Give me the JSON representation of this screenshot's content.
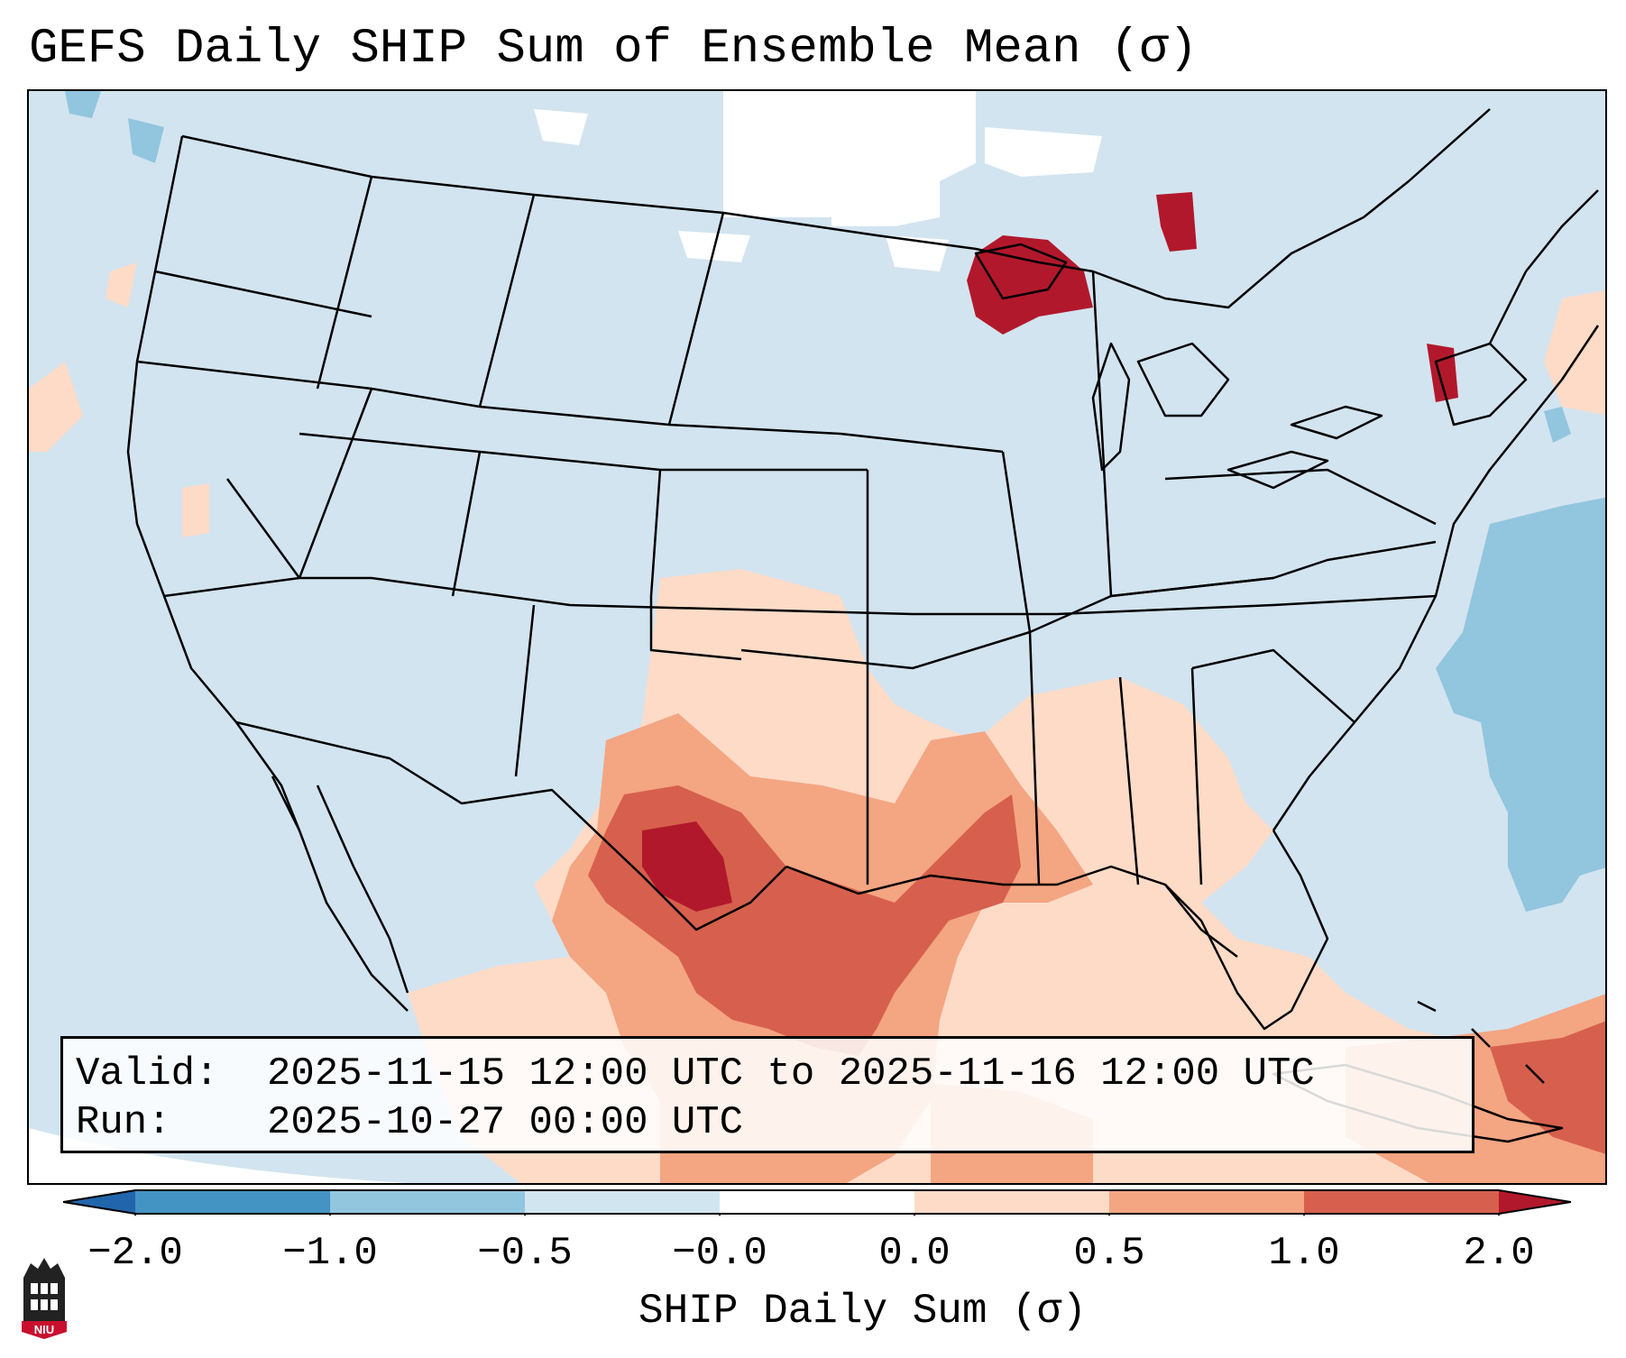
{
  "title": "GEFS Daily SHIP Sum of Ensemble Mean (σ)",
  "map": {
    "region": "Continental United States",
    "colors": {
      "ocean_background": "#d2e4f0",
      "no_data": "#ffffff",
      "state_lines": "#000000"
    }
  },
  "info": {
    "valid_label": "Valid:",
    "valid_value": "2025-11-15 12:00 UTC to 2025-11-16 12:00 UTC",
    "run_label": "Run:",
    "run_value": "2025-10-27 00:00 UTC"
  },
  "colorbar": {
    "label": "SHIP Daily Sum (σ)",
    "ticks": [
      "−2.0",
      "−1.0",
      "−0.5",
      "−0.0",
      "0.0",
      "0.5",
      "1.0",
      "2.0"
    ],
    "bins": [
      {
        "range": "< -2.0",
        "color": "#2166ac"
      },
      {
        "range": "-2.0 to -1.0",
        "color": "#4393c3"
      },
      {
        "range": "-1.0 to -0.5",
        "color": "#92c5de"
      },
      {
        "range": "-0.5 to -0.0",
        "color": "#d1e5f0"
      },
      {
        "range": "-0.0 to 0.0",
        "color": "#ffffff"
      },
      {
        "range": "0.0 to 0.5",
        "color": "#fddbc7"
      },
      {
        "range": "0.5 to 1.0",
        "color": "#f4a582"
      },
      {
        "range": "1.0 to 2.0",
        "color": "#d6604d"
      },
      {
        "range": "> 2.0",
        "color": "#b2182b"
      }
    ]
  },
  "logo": {
    "text": "NIU",
    "icon": "niu-building-logo"
  }
}
